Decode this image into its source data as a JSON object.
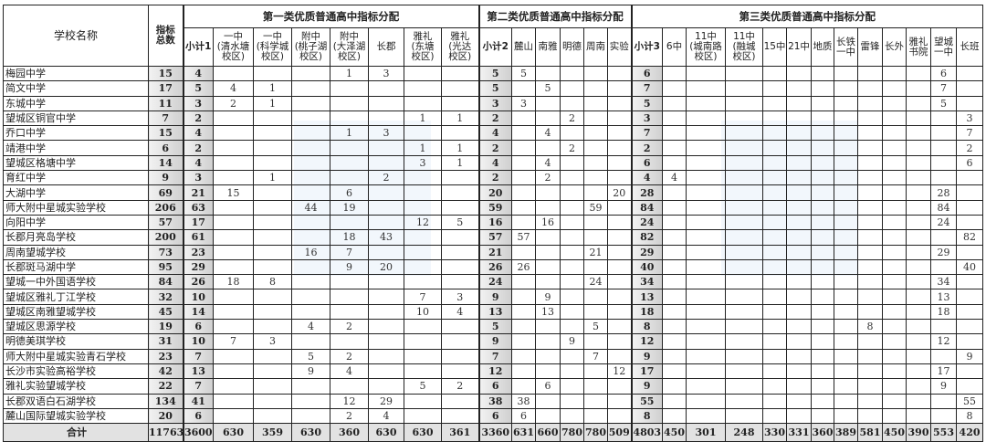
{
  "table": {
    "header_school": "学校名称",
    "header_total": "指标\n总数",
    "groups": [
      "第一类优质普通高中指标分配",
      "第二类优质普通高中指标分配",
      "第三类优质普通高中指标分配"
    ],
    "subheaders": [
      "小计1",
      "一中\n(清水塘\n校区)",
      "一中\n(科学城\n校区)",
      "附中\n(桃子湖\n校区)",
      "附中\n(大泽湖\n校区)",
      "长郡",
      "雅礼\n(东塘\n校区)",
      "雅礼\n(光达\n校区)",
      "小计2",
      "麓山",
      "南雅",
      "明德",
      "周南",
      "实验",
      "小计3",
      "6中",
      "11中\n(城南路\n校区)",
      "11中\n(融城\n校区)",
      "15中",
      "21中",
      "地质",
      "长铁\n一中",
      "雷锋",
      "长外",
      "雅礼\n书院",
      "望城\n一中",
      "长班"
    ],
    "rows": [
      [
        "梅园中学",
        "15",
        "4",
        "",
        "",
        "",
        "1",
        "3",
        "",
        "",
        "5",
        "5",
        "",
        "",
        "",
        "",
        "6",
        "",
        "",
        "",
        "",
        "",
        "",
        "",
        "",
        "",
        "",
        "6",
        ""
      ],
      [
        "简文中学",
        "17",
        "5",
        "4",
        "1",
        "",
        "",
        "",
        "",
        "",
        "5",
        "",
        "5",
        "",
        "",
        "",
        "7",
        "",
        "",
        "",
        "",
        "",
        "",
        "",
        "",
        "",
        "",
        "7",
        ""
      ],
      [
        "东城中学",
        "11",
        "3",
        "2",
        "1",
        "",
        "",
        "",
        "",
        "",
        "3",
        "3",
        "",
        "",
        "",
        "",
        "5",
        "",
        "",
        "",
        "",
        "",
        "",
        "",
        "",
        "",
        "",
        "5",
        ""
      ],
      [
        "望城区铜官中学",
        "7",
        "2",
        "",
        "",
        "",
        "",
        "",
        "1",
        "1",
        "2",
        "",
        "",
        "2",
        "",
        "",
        "3",
        "",
        "",
        "",
        "",
        "",
        "",
        "",
        "",
        "",
        "",
        "",
        "3"
      ],
      [
        "乔口中学",
        "15",
        "4",
        "",
        "",
        "",
        "1",
        "3",
        "",
        "",
        "4",
        "",
        "4",
        "",
        "",
        "",
        "7",
        "",
        "",
        "",
        "",
        "",
        "",
        "",
        "",
        "",
        "",
        "",
        "7"
      ],
      [
        "靖港中学",
        "6",
        "2",
        "",
        "",
        "",
        "",
        "",
        "1",
        "1",
        "2",
        "",
        "",
        "2",
        "",
        "",
        "2",
        "",
        "",
        "",
        "",
        "",
        "",
        "",
        "",
        "",
        "",
        "",
        "2"
      ],
      [
        "望城区格塘中学",
        "14",
        "4",
        "",
        "",
        "",
        "",
        "",
        "3",
        "1",
        "4",
        "",
        "4",
        "",
        "",
        "",
        "6",
        "",
        "",
        "",
        "",
        "",
        "",
        "",
        "",
        "",
        "",
        "",
        "6"
      ],
      [
        "育红中学",
        "9",
        "3",
        "",
        "1",
        "",
        "",
        "2",
        "",
        "",
        "2",
        "",
        "2",
        "",
        "",
        "",
        "4",
        "4",
        "",
        "",
        "",
        "",
        "",
        "",
        "",
        "",
        "",
        "",
        ""
      ],
      [
        "大湖中学",
        "69",
        "21",
        "15",
        "",
        "",
        "6",
        "",
        "",
        "",
        "20",
        "",
        "",
        "",
        "",
        "20",
        "28",
        "",
        "",
        "",
        "",
        "",
        "",
        "",
        "",
        "",
        "",
        "28",
        ""
      ],
      [
        "师大附中星城实验学校",
        "206",
        "63",
        "",
        "",
        "44",
        "19",
        "",
        "",
        "",
        "59",
        "",
        "",
        "",
        "59",
        "",
        "84",
        "",
        "",
        "",
        "",
        "",
        "",
        "",
        "",
        "",
        "",
        "84",
        ""
      ],
      [
        "向阳中学",
        "57",
        "17",
        "",
        "",
        "",
        "",
        "",
        "12",
        "5",
        "16",
        "",
        "16",
        "",
        "",
        "",
        "24",
        "",
        "",
        "",
        "",
        "",
        "",
        "",
        "",
        "",
        "",
        "24",
        ""
      ],
      [
        "长郡月亮岛学校",
        "200",
        "61",
        "",
        "",
        "",
        "18",
        "43",
        "",
        "",
        "57",
        "57",
        "",
        "",
        "",
        "",
        "82",
        "",
        "",
        "",
        "",
        "",
        "",
        "",
        "",
        "",
        "",
        "",
        "82"
      ],
      [
        "周南望城学校",
        "73",
        "23",
        "",
        "",
        "16",
        "7",
        "",
        "",
        "",
        "21",
        "",
        "",
        "",
        "21",
        "",
        "29",
        "",
        "",
        "",
        "",
        "",
        "",
        "",
        "",
        "",
        "",
        "29",
        ""
      ],
      [
        "长郡斑马湖中学",
        "95",
        "29",
        "",
        "",
        "",
        "9",
        "20",
        "",
        "",
        "26",
        "26",
        "",
        "",
        "",
        "",
        "40",
        "",
        "",
        "",
        "",
        "",
        "",
        "",
        "",
        "",
        "",
        "",
        "40"
      ],
      [
        "望城一中外国语学校",
        "84",
        "26",
        "18",
        "8",
        "",
        "",
        "",
        "",
        "",
        "24",
        "",
        "",
        "",
        "24",
        "",
        "34",
        "",
        "",
        "",
        "",
        "",
        "",
        "",
        "",
        "",
        "",
        "34",
        ""
      ],
      [
        "望城区雅礼丁江学校",
        "32",
        "10",
        "",
        "",
        "",
        "",
        "",
        "7",
        "3",
        "9",
        "",
        "9",
        "",
        "",
        "",
        "13",
        "",
        "",
        "",
        "",
        "",
        "",
        "",
        "",
        "",
        "",
        "13",
        ""
      ],
      [
        "望城区南雅望城学校",
        "45",
        "14",
        "",
        "",
        "",
        "",
        "",
        "10",
        "4",
        "13",
        "",
        "13",
        "",
        "",
        "",
        "18",
        "",
        "",
        "",
        "",
        "",
        "",
        "",
        "",
        "",
        "",
        "18",
        ""
      ],
      [
        "望城区思源学校",
        "19",
        "6",
        "",
        "",
        "4",
        "2",
        "",
        "",
        "",
        "5",
        "",
        "",
        "",
        "5",
        "",
        "8",
        "",
        "",
        "",
        "",
        "",
        "",
        "",
        "8",
        "",
        "",
        "",
        ""
      ],
      [
        "明德美琪学校",
        "31",
        "10",
        "7",
        "3",
        "",
        "",
        "",
        "",
        "",
        "9",
        "",
        "",
        "9",
        "",
        "",
        "12",
        "",
        "",
        "",
        "",
        "",
        "",
        "",
        "",
        "",
        "",
        "12",
        ""
      ],
      [
        "师大附中星城实验青石学校",
        "23",
        "7",
        "",
        "",
        "5",
        "2",
        "",
        "",
        "",
        "7",
        "",
        "",
        "",
        "7",
        "",
        "9",
        "",
        "",
        "",
        "",
        "",
        "",
        "",
        "",
        "",
        "",
        "",
        "9"
      ],
      [
        "长沙市实验高裕学校",
        "42",
        "13",
        "",
        "",
        "9",
        "4",
        "",
        "",
        "",
        "12",
        "",
        "",
        "",
        "",
        "12",
        "17",
        "",
        "",
        "",
        "",
        "",
        "",
        "",
        "",
        "",
        "",
        "17",
        ""
      ],
      [
        "雅礼实验望城学校",
        "22",
        "7",
        "",
        "",
        "",
        "",
        "",
        "5",
        "2",
        "6",
        "",
        "6",
        "",
        "",
        "",
        "9",
        "",
        "",
        "",
        "",
        "",
        "",
        "",
        "",
        "",
        "",
        "9",
        ""
      ],
      [
        "长郡双语白石湖学校",
        "134",
        "41",
        "",
        "",
        "",
        "12",
        "29",
        "",
        "",
        "38",
        "38",
        "",
        "",
        "",
        "",
        "55",
        "",
        "",
        "",
        "",
        "",
        "",
        "",
        "",
        "",
        "",
        "",
        "55"
      ],
      [
        "麓山国际望城实验学校",
        "20",
        "6",
        "",
        "",
        "",
        "2",
        "4",
        "",
        "",
        "6",
        "6",
        "",
        "",
        "",
        "",
        "8",
        "",
        "",
        "",
        "",
        "",
        "",
        "",
        "",
        "",
        "",
        "",
        "8"
      ]
    ],
    "total_row": [
      "合计",
      "11763",
      "3600",
      "630",
      "359",
      "630",
      "360",
      "630",
      "630",
      "361",
      "3360",
      "631",
      "660",
      "780",
      "780",
      "509",
      "4803",
      "450",
      "301",
      "248",
      "330",
      "331",
      "360",
      "389",
      "581",
      "450",
      "390",
      "553",
      "420"
    ]
  }
}
